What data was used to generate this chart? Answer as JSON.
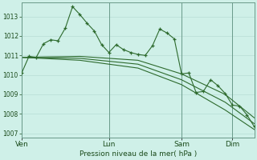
{
  "bg_color": "#cff0e8",
  "grid_color": "#b8ddd5",
  "line_color": "#2d6a2d",
  "marker_color": "#2d6a2d",
  "xlabel": "Pression niveau de la mer( hPa )",
  "ylim": [
    1006.8,
    1013.7
  ],
  "yticks": [
    1007,
    1008,
    1009,
    1010,
    1011,
    1012,
    1013
  ],
  "xtick_labels": [
    "Ven",
    "Lun",
    "Sam",
    "Dim"
  ],
  "xtick_positions": [
    0,
    12,
    22,
    29
  ],
  "vline_positions": [
    0,
    12,
    22,
    29
  ],
  "series1_x": [
    0,
    1,
    2,
    3,
    4,
    5,
    6,
    7,
    8,
    9,
    10,
    11,
    12,
    13,
    14,
    15,
    16,
    17,
    18,
    19,
    20,
    21,
    22,
    23,
    24,
    25,
    26,
    27,
    28,
    29,
    30,
    31,
    32
  ],
  "series1_y": [
    1010.1,
    1010.95,
    1010.9,
    1011.6,
    1011.8,
    1011.75,
    1012.4,
    1013.5,
    1013.1,
    1012.65,
    1012.25,
    1011.55,
    1011.15,
    1011.55,
    1011.3,
    1011.15,
    1011.05,
    1011.0,
    1011.5,
    1012.35,
    1012.15,
    1011.85,
    1010.05,
    1010.1,
    1009.1,
    1009.15,
    1009.75,
    1009.45,
    1009.05,
    1008.45,
    1008.4,
    1007.95,
    1007.35
  ],
  "series2_x": [
    0,
    8,
    16,
    22,
    28,
    32
  ],
  "series2_y": [
    1010.9,
    1010.95,
    1010.75,
    1010.05,
    1009.0,
    1007.8
  ],
  "series3_x": [
    0,
    8,
    16,
    22,
    28,
    32
  ],
  "series3_y": [
    1010.9,
    1010.85,
    1010.55,
    1009.75,
    1008.6,
    1007.5
  ],
  "series4_x": [
    0,
    8,
    16,
    22,
    28,
    32
  ],
  "series4_y": [
    1010.9,
    1010.75,
    1010.35,
    1009.5,
    1008.2,
    1007.2
  ]
}
